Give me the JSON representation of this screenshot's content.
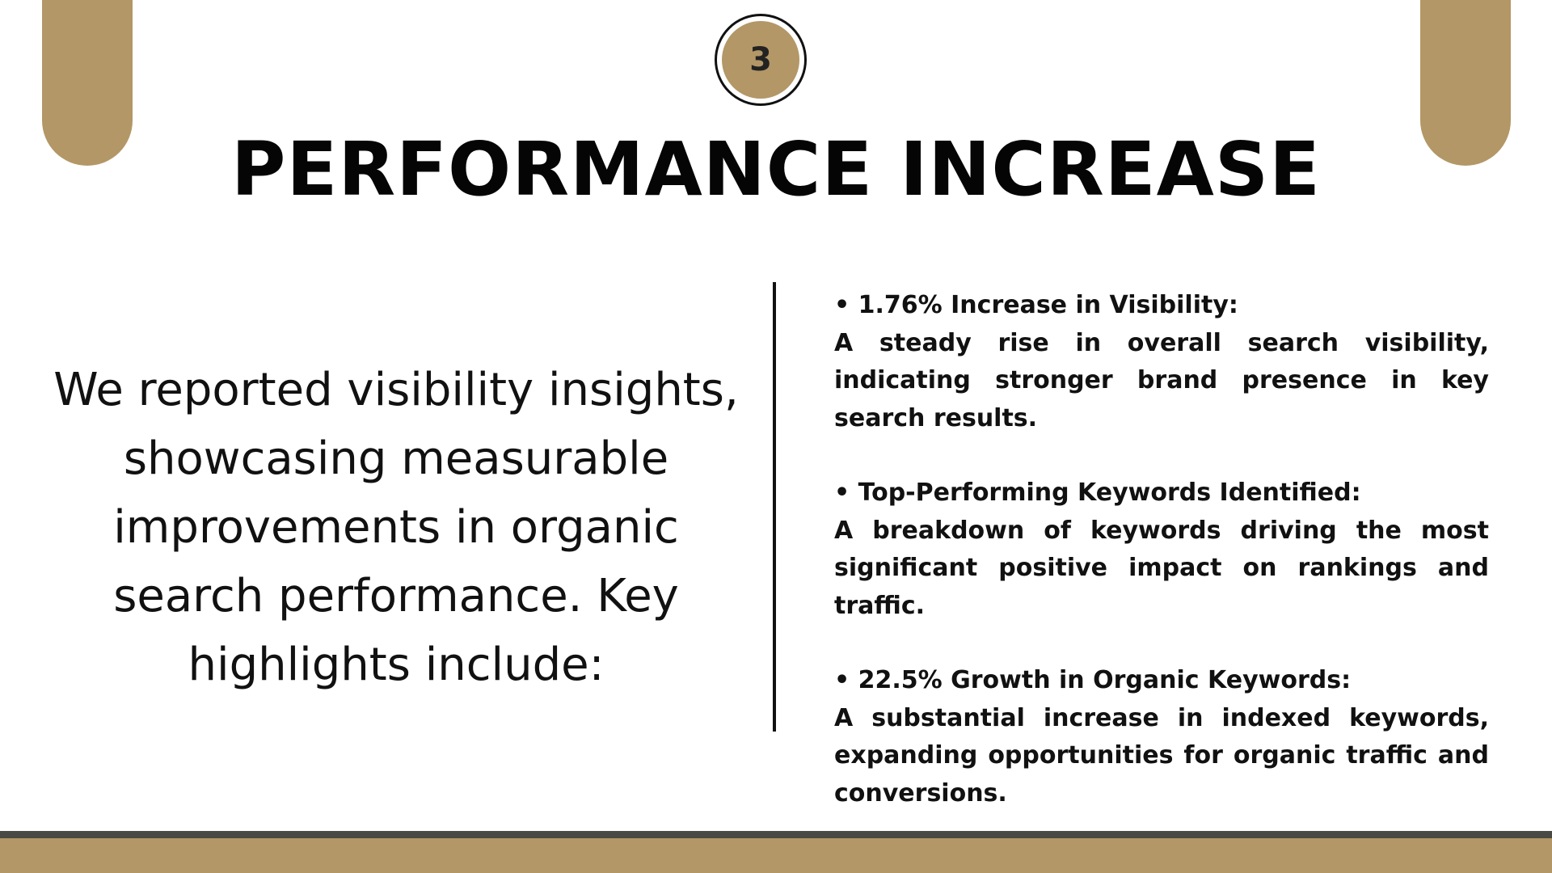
{
  "slide": {
    "number": "3",
    "title": "PERFORMANCE INCREASE",
    "intro": "We reported visibility insights, showcasing measurable improvements in organic search performance. Key highlights include:",
    "highlights": [
      {
        "heading": "• 1.76% Increase in Visibility:",
        "body": "A steady rise in overall search visibility, indicating stronger brand presence in key search results."
      },
      {
        "heading": "• Top-Performing Keywords Identified:",
        "body": " A breakdown of keywords driving the most significant positive impact on rankings and traffic."
      },
      {
        "heading": "• 22.5% Growth in Organic Keywords:",
        "body": "A substantial increase in indexed keywords, expanding opportunities for organic traffic and conversions."
      }
    ]
  },
  "colors": {
    "accent": "#b39766",
    "text": "#111111",
    "footer_line": "#4a4a44",
    "background": "#ffffff"
  }
}
